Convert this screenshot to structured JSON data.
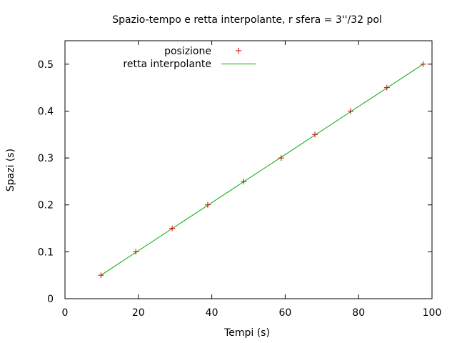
{
  "chart_data": {
    "type": "scatter",
    "title": "Spazio-tempo e retta interpolante, r sfera = 3''/32 pol",
    "xlabel": "Tempi (s)",
    "ylabel": "Spazi (s)",
    "xlim": [
      0,
      100
    ],
    "ylim": [
      0,
      0.55
    ],
    "xticks": [
      "0",
      "20",
      "40",
      "60",
      "80",
      "100"
    ],
    "yticks": [
      "0",
      "0.1",
      "0.2",
      "0.3",
      "0.4",
      "0.5"
    ],
    "grid": false,
    "legend_position": "top-center",
    "series": [
      {
        "name": "posizione",
        "kind": "points",
        "marker": "plus",
        "color": "#cc0000",
        "x": [
          9.8,
          19.3,
          29.2,
          38.9,
          48.7,
          58.9,
          68.1,
          77.8,
          87.7,
          97.6
        ],
        "y": [
          0.05,
          0.1,
          0.15,
          0.2,
          0.25,
          0.3,
          0.35,
          0.4,
          0.45,
          0.5
        ]
      },
      {
        "name": "retta interpolante",
        "kind": "line",
        "color": "#00aa00",
        "x": [
          9.8,
          97.6
        ],
        "y": [
          0.05,
          0.5
        ]
      }
    ]
  }
}
